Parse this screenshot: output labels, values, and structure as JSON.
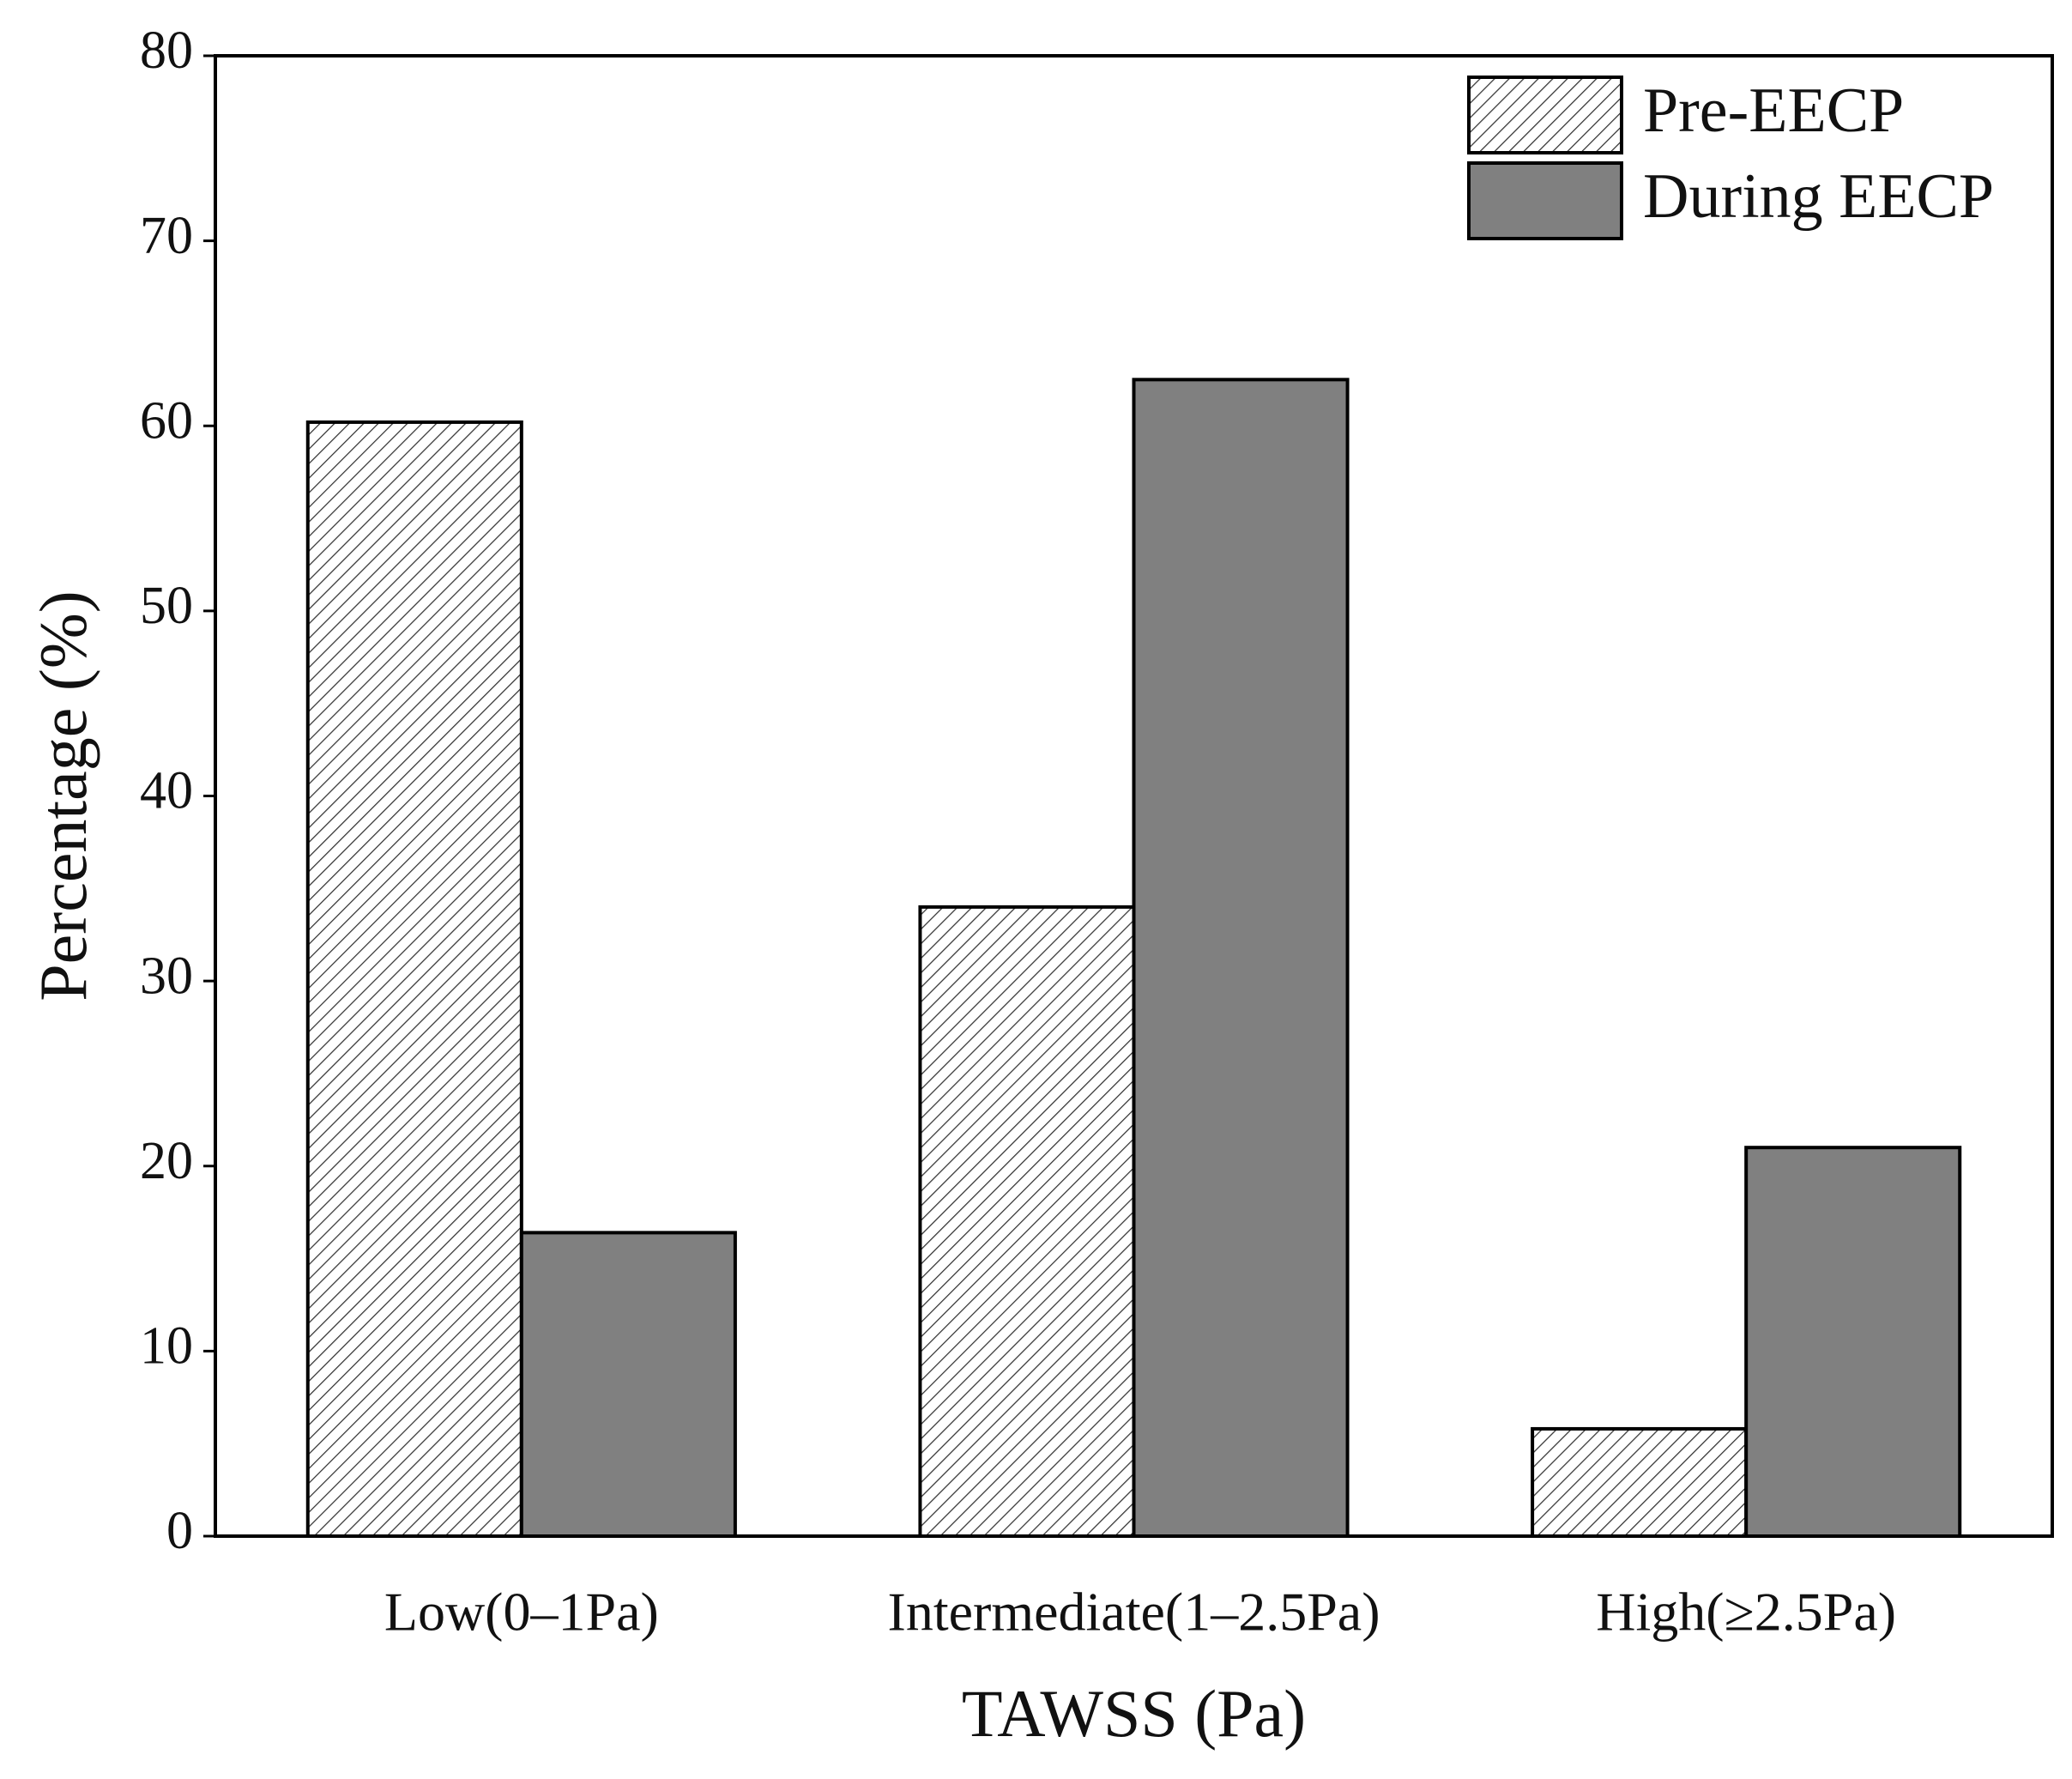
{
  "chart_data": {
    "type": "bar",
    "categories": [
      "Low(0–1Pa)",
      "Intermediate(1–2.5Pa)",
      "High(≥2.5Pa)"
    ],
    "series": [
      {
        "name": "Pre-EECP",
        "color": "#ffffff",
        "pattern": "hatch",
        "values": [
          60.2,
          34.0,
          5.8
        ]
      },
      {
        "name": "During EECP",
        "color": "#808080",
        "values": [
          16.4,
          62.5,
          21.0
        ]
      }
    ],
    "x_label": "TAWSS (Pa)",
    "y_label": "Percentage (%)",
    "ylim": [
      0,
      80
    ],
    "yticks": [
      0,
      10,
      20,
      30,
      40,
      50,
      60,
      70,
      80
    ],
    "grid": false,
    "legend": "top-right"
  }
}
